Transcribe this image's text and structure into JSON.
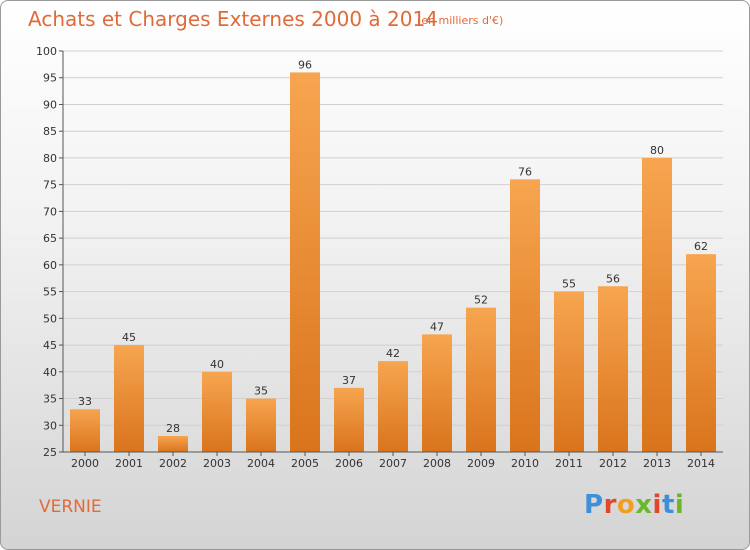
{
  "header": {
    "title": "Achats et Charges Externes 2000 à 2014",
    "subtitle": "(en milliers d'€)"
  },
  "footer": {
    "location": "VERNIE",
    "brand": {
      "letters": [
        "P",
        "r",
        "o",
        "x",
        "i",
        "t",
        "i"
      ]
    }
  },
  "colors": {
    "title": "#e06a3a",
    "bar_light": "#f7a550",
    "bar_dark": "#d9741c",
    "logo_letters": [
      "#3f8fd8",
      "#e3472b",
      "#f0a020",
      "#69b82b",
      "#e3472b",
      "#3f8fd8",
      "#69b82b"
    ]
  },
  "chart_data": {
    "type": "bar",
    "title": "Achats et Charges Externes 2000 à 2014",
    "subtitle": "(en milliers d'€)",
    "categories": [
      "2000",
      "2001",
      "2002",
      "2003",
      "2004",
      "2005",
      "2006",
      "2007",
      "2008",
      "2009",
      "2010",
      "2011",
      "2012",
      "2013",
      "2014"
    ],
    "values": [
      33,
      45,
      28,
      40,
      35,
      96,
      37,
      42,
      47,
      52,
      76,
      55,
      56,
      80,
      62
    ],
    "ylim": [
      25,
      100
    ],
    "yticks": [
      25,
      30,
      35,
      40,
      45,
      50,
      55,
      60,
      65,
      70,
      75,
      80,
      85,
      90,
      95,
      100
    ],
    "grid": true,
    "data_labels": true
  }
}
